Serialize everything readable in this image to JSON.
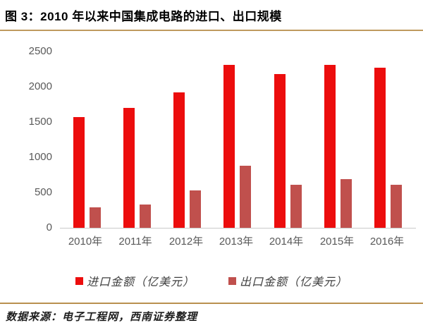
{
  "title": "图 3：2010 年以来中国集成电路的进口、出口规模",
  "source_note": "数据来源：电子工程网，西南证券整理",
  "colors": {
    "import_red": "#ec0d0d",
    "export_red": "#c0504d",
    "axis_text": "#595959",
    "gold_rule": "#bf9a5e"
  },
  "chart_data": {
    "type": "bar",
    "categories": [
      "2010年",
      "2011年",
      "2012年",
      "2013年",
      "2014年",
      "2015年",
      "2016年"
    ],
    "series": [
      {
        "name": "进口金额（亿美元）",
        "color": "#ec0d0d",
        "values": [
          1570,
          1702,
          1921,
          2313,
          2176,
          2307,
          2271
        ]
      },
      {
        "name": "出口金额（亿美元）",
        "color": "#c0504d",
        "values": [
          292,
          326,
          534,
          877,
          609,
          693,
          614
        ]
      }
    ],
    "ylim": [
      0,
      2500
    ],
    "yticks": [
      0,
      500,
      1000,
      1500,
      2000,
      2500
    ],
    "grid": false,
    "legend_position": "bottom"
  }
}
